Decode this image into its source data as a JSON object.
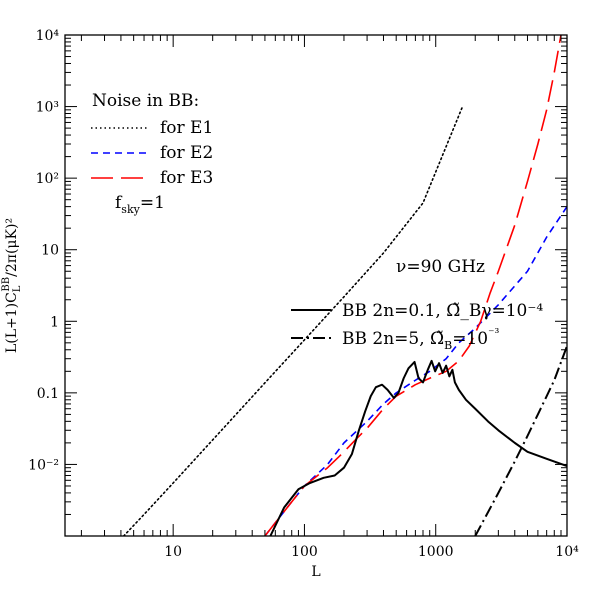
{
  "chart_data": {
    "type": "line",
    "x_scale": "log",
    "y_scale": "log",
    "xlim": [
      1.5,
      10000
    ],
    "ylim": [
      0.001,
      10000
    ],
    "xlabel": "L",
    "ylabel": "L(L+1)C_L^{BB}/2π(μK)²",
    "x_ticks": [
      {
        "value": 10,
        "label": "10"
      },
      {
        "value": 100,
        "label": "100"
      },
      {
        "value": 1000,
        "label": "1000"
      },
      {
        "value": 10000,
        "label": "10⁴"
      }
    ],
    "y_ticks": [
      {
        "value": 0.01,
        "label": "10⁻²"
      },
      {
        "value": 0.1,
        "label": "0.1"
      },
      {
        "value": 1,
        "label": "1"
      },
      {
        "value": 10,
        "label": "10"
      },
      {
        "value": 100,
        "label": "10²"
      },
      {
        "value": 1000,
        "label": "10³"
      },
      {
        "value": 10000,
        "label": "10⁴"
      }
    ],
    "legend_title": "Noise in BB:",
    "fsky_label": "f_sky=1",
    "frequency_label": "ν=90 GHz",
    "series": [
      {
        "name": "for E1",
        "color": "#000000",
        "dash": "dotted",
        "x": [
          4.2,
          6,
          10,
          20,
          50,
          100,
          200,
          400,
          800,
          1600
        ],
        "y": [
          0.001,
          0.002,
          0.0055,
          0.022,
          0.138,
          0.55,
          2.2,
          9,
          45,
          1000
        ]
      },
      {
        "name": "for E2",
        "color": "#0000ff",
        "dash": "dashed",
        "x": [
          50,
          80,
          100,
          150,
          200,
          300,
          400,
          500,
          700,
          900,
          1200,
          1500,
          2000,
          3000,
          5000,
          7000,
          10000
        ],
        "y": [
          0.001,
          0.003,
          0.005,
          0.01,
          0.02,
          0.04,
          0.07,
          0.1,
          0.15,
          0.2,
          0.3,
          0.5,
          0.8,
          1.7,
          5,
          15,
          40
        ]
      },
      {
        "name": "for E3",
        "color": "#ff0000",
        "dash": "longdash",
        "x": [
          50,
          80,
          100,
          150,
          200,
          250,
          300,
          400,
          500,
          700,
          900,
          1200,
          1500,
          1800,
          2200,
          2600,
          3000,
          4000,
          5000,
          6000,
          7000,
          8000,
          9000
        ],
        "y": [
          0.001,
          0.003,
          0.005,
          0.009,
          0.015,
          0.023,
          0.032,
          0.06,
          0.09,
          0.13,
          0.16,
          0.2,
          0.28,
          0.45,
          1,
          2.5,
          5,
          22,
          90,
          300,
          900,
          3000,
          10000
        ]
      },
      {
        "name": "BB 2n=0.1, Ω̃_Bγ=10⁻⁴",
        "color": "#000000",
        "dash": "solid",
        "x": [
          55,
          70,
          90,
          110,
          140,
          170,
          200,
          230,
          260,
          290,
          320,
          350,
          390,
          430,
          480,
          520,
          570,
          620,
          690,
          740,
          800,
          870,
          930,
          990,
          1060,
          1130,
          1200,
          1270,
          1340,
          1400,
          1500,
          1700,
          2000,
          2500,
          3000,
          4000,
          5000,
          7000,
          10000
        ],
        "y": [
          0.001,
          0.0025,
          0.0045,
          0.0055,
          0.0065,
          0.007,
          0.009,
          0.014,
          0.03,
          0.055,
          0.09,
          0.12,
          0.13,
          0.11,
          0.085,
          0.1,
          0.16,
          0.22,
          0.27,
          0.16,
          0.14,
          0.21,
          0.28,
          0.2,
          0.26,
          0.19,
          0.24,
          0.17,
          0.21,
          0.14,
          0.11,
          0.08,
          0.06,
          0.04,
          0.03,
          0.02,
          0.015,
          0.012,
          0.0095
        ]
      },
      {
        "name": "BB 2n=5, Ω̃_B=10⁻³",
        "color": "#000000",
        "dash": "dashdot",
        "x": [
          2000,
          3000,
          4000,
          5000,
          6000,
          7000,
          8000,
          10000
        ],
        "y": [
          0.001,
          0.004,
          0.011,
          0.025,
          0.05,
          0.09,
          0.15,
          0.45
        ]
      }
    ]
  }
}
